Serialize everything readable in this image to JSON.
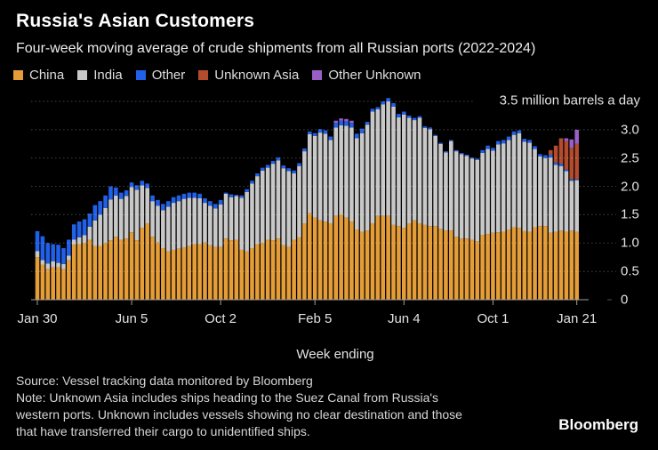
{
  "header": {
    "title": "Russia's Asian Customers",
    "subtitle": "Four-week moving average of crude shipments from all Russian ports (2022-2024)"
  },
  "legend": [
    {
      "label": "China",
      "color": "#E59D38"
    },
    {
      "label": "India",
      "color": "#C8C8C8"
    },
    {
      "label": "Other",
      "color": "#2160E8"
    },
    {
      "label": "Unknown Asia",
      "color": "#B34B2D"
    },
    {
      "label": "Other Unknown",
      "color": "#9A5FC5"
    }
  ],
  "chart_data": {
    "type": "bar",
    "stacked": true,
    "title": "Russia's Asian Customers",
    "subtitle": "Four-week moving average of crude shipments from all Russian ports (2022-2024)",
    "unit_label": "3.5 million barrels a day",
    "xlabel": "Week ending",
    "ylim": [
      0,
      3.5
    ],
    "grid": "dotted-horizontal",
    "legend_position": "top",
    "ytick_values": [
      0,
      0.5,
      1.0,
      1.5,
      2.0,
      2.5,
      3.0
    ],
    "ytick_labels": [
      "0",
      "0.5",
      "1.0",
      "1.5",
      "2.0",
      "2.5",
      "3.0"
    ],
    "xtick_labels": [
      "Jan 30",
      "Jun 5",
      "Oct 2",
      "Feb 5",
      "Jun 4",
      "Oct 1",
      "Jan 21"
    ],
    "xtick_week_indices": [
      0,
      18,
      35,
      53,
      70,
      87,
      103
    ],
    "weeks": 104,
    "series": [
      {
        "name": "China",
        "color": "#E59D38",
        "values": [
          0.75,
          0.62,
          0.54,
          0.57,
          0.57,
          0.54,
          0.7,
          0.97,
          0.98,
          1.0,
          1.06,
          0.95,
          0.95,
          1.0,
          1.05,
          1.11,
          1.06,
          1.08,
          1.19,
          1.05,
          1.27,
          1.35,
          1.11,
          1.01,
          0.91,
          0.85,
          0.88,
          0.9,
          0.92,
          0.95,
          0.98,
          0.98,
          1.01,
          0.96,
          0.93,
          0.93,
          1.08,
          1.05,
          1.06,
          0.88,
          0.85,
          0.91,
          0.98,
          1.0,
          1.06,
          1.05,
          1.08,
          0.96,
          0.93,
          1.06,
          1.1,
          1.35,
          1.53,
          1.45,
          1.4,
          1.38,
          1.35,
          1.48,
          1.5,
          1.45,
          1.38,
          1.24,
          1.2,
          1.22,
          1.35,
          1.48,
          1.48,
          1.48,
          1.32,
          1.3,
          1.27,
          1.35,
          1.4,
          1.35,
          1.32,
          1.3,
          1.3,
          1.25,
          1.22,
          1.22,
          1.11,
          1.08,
          1.08,
          1.06,
          1.03,
          1.14,
          1.16,
          1.18,
          1.19,
          1.2,
          1.24,
          1.28,
          1.27,
          1.21,
          1.2,
          1.28,
          1.3,
          1.3,
          1.18,
          1.2,
          1.22,
          1.2,
          1.22,
          1.2
        ]
      },
      {
        "name": "India",
        "color": "#C8C8C8",
        "values": [
          0.11,
          0.08,
          0.1,
          0.11,
          0.08,
          0.09,
          0.08,
          0.09,
          0.12,
          0.14,
          0.23,
          0.45,
          0.55,
          0.62,
          0.72,
          0.73,
          0.72,
          0.75,
          0.8,
          0.89,
          0.75,
          0.62,
          0.63,
          0.65,
          0.67,
          0.79,
          0.83,
          0.84,
          0.86,
          0.85,
          0.82,
          0.81,
          0.7,
          0.7,
          0.68,
          0.75,
          0.79,
          0.76,
          0.77,
          0.92,
          1.05,
          1.14,
          1.2,
          1.28,
          1.27,
          1.35,
          1.38,
          1.36,
          1.34,
          1.17,
          1.26,
          1.27,
          1.39,
          1.44,
          1.55,
          1.55,
          1.47,
          1.56,
          1.58,
          1.62,
          1.66,
          1.61,
          1.74,
          1.87,
          1.97,
          1.88,
          1.97,
          2.02,
          2.09,
          1.92,
          2.0,
          1.86,
          1.77,
          1.86,
          1.71,
          1.71,
          1.59,
          1.5,
          1.38,
          1.58,
          1.51,
          1.49,
          1.46,
          1.43,
          1.44,
          1.45,
          1.5,
          1.45,
          1.55,
          1.56,
          1.58,
          1.63,
          1.67,
          1.58,
          1.57,
          1.38,
          1.23,
          1.2,
          1.33,
          1.18,
          1.14,
          1.07,
          0.88,
          0.91
        ]
      },
      {
        "name": "Other",
        "color": "#2160E8",
        "values": [
          0.35,
          0.42,
          0.36,
          0.3,
          0.32,
          0.28,
          0.28,
          0.27,
          0.28,
          0.28,
          0.23,
          0.27,
          0.24,
          0.22,
          0.23,
          0.14,
          0.11,
          0.1,
          0.08,
          0.08,
          0.08,
          0.08,
          0.1,
          0.1,
          0.11,
          0.1,
          0.1,
          0.1,
          0.09,
          0.09,
          0.09,
          0.08,
          0.08,
          0.08,
          0.08,
          0.08,
          0.02,
          0.05,
          0.02,
          0.04,
          0.05,
          0.05,
          0.05,
          0.05,
          0.05,
          0.05,
          0.05,
          0.05,
          0.05,
          0.05,
          0.05,
          0.05,
          0.05,
          0.05,
          0.06,
          0.06,
          0.06,
          0.08,
          0.08,
          0.08,
          0.08,
          0.08,
          0.08,
          0.05,
          0.05,
          0.04,
          0.05,
          0.06,
          0.06,
          0.06,
          0.05,
          0.04,
          0.04,
          0.03,
          0.03,
          0.03,
          0.02,
          0.02,
          0.02,
          0.02,
          0.02,
          0.02,
          0.02,
          0.02,
          0.02,
          0.05,
          0.06,
          0.05,
          0.06,
          0.06,
          0.06,
          0.06,
          0.05,
          0.05,
          0.05,
          0.05,
          0.04,
          0.05,
          0.05,
          0.04,
          0.04,
          0.03,
          0.03,
          0.02
        ]
      },
      {
        "name": "Unknown Asia",
        "color": "#B34B2D",
        "values": [
          0,
          0,
          0,
          0,
          0,
          0,
          0,
          0,
          0,
          0,
          0,
          0,
          0,
          0,
          0,
          0,
          0,
          0,
          0,
          0,
          0,
          0,
          0,
          0,
          0,
          0,
          0,
          0,
          0,
          0,
          0,
          0,
          0,
          0,
          0,
          0,
          0,
          0,
          0,
          0,
          0,
          0,
          0,
          0,
          0,
          0,
          0,
          0,
          0,
          0,
          0,
          0,
          0,
          0,
          0,
          0,
          0,
          0,
          0,
          0,
          0,
          0,
          0,
          0,
          0,
          0,
          0,
          0,
          0,
          0,
          0,
          0,
          0,
          0,
          0,
          0,
          0,
          0,
          0,
          0,
          0,
          0,
          0,
          0,
          0,
          0,
          0,
          0,
          0,
          0,
          0,
          0,
          0,
          0,
          0,
          0,
          0,
          0,
          0.08,
          0.3,
          0.45,
          0.5,
          0.55,
          0.62
        ]
      },
      {
        "name": "Other Unknown",
        "color": "#9A5FC5",
        "values": [
          0,
          0,
          0,
          0,
          0,
          0,
          0,
          0,
          0,
          0,
          0,
          0,
          0,
          0,
          0,
          0,
          0,
          0,
          0,
          0,
          0,
          0,
          0,
          0,
          0,
          0,
          0,
          0,
          0,
          0,
          0,
          0,
          0,
          0,
          0,
          0,
          0,
          0,
          0,
          0,
          0,
          0,
          0,
          0,
          0,
          0,
          0,
          0,
          0,
          0,
          0,
          0,
          0,
          0,
          0,
          0,
          0,
          0.04,
          0.04,
          0.04,
          0.04,
          0,
          0,
          0,
          0,
          0,
          0,
          0,
          0,
          0,
          0,
          0,
          0,
          0,
          0,
          0,
          0,
          0,
          0,
          0,
          0,
          0,
          0,
          0,
          0,
          0,
          0,
          0,
          0,
          0,
          0,
          0,
          0,
          0,
          0,
          0,
          0,
          0,
          0,
          0,
          0,
          0.05,
          0.15,
          0.25,
          0.3
        ]
      }
    ]
  },
  "footer": {
    "source": "Source: Vessel tracking data monitored by Bloomberg",
    "note_lines": [
      "Note: Unknown Asia includes ships heading to the Suez Canal from Russia's",
      "western ports. Unknown includes vessels showing no clear destination and those",
      "that have transferred their cargo to unidentified ships."
    ],
    "logo": "Bloomberg"
  }
}
